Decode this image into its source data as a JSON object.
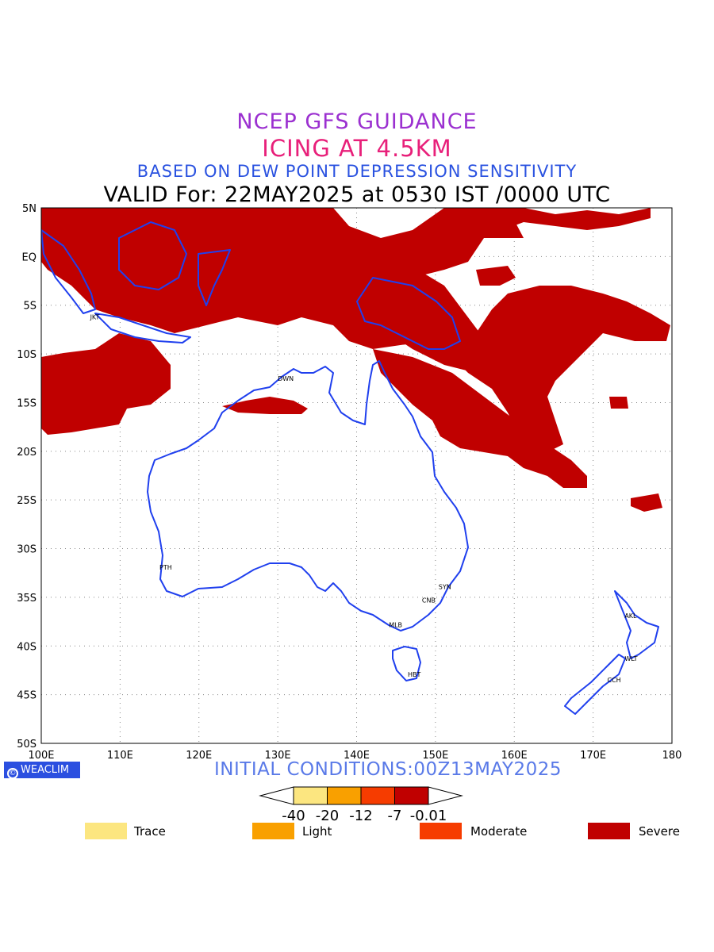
{
  "titles": {
    "line1": "NCEP GFS GUIDANCE",
    "line2": "ICING AT 4.5KM",
    "line3": "BASED ON DEW POINT DEPRESSION SENSITIVITY",
    "line4": "VALID For: 22MAY2025 at 0530 IST /0000 UTC"
  },
  "axes": {
    "lon_labels": [
      "100E",
      "110E",
      "120E",
      "130E",
      "140E",
      "150E",
      "160E",
      "170E",
      "180"
    ],
    "lat_labels": [
      "5N",
      "EQ",
      "5S",
      "10S",
      "15S",
      "20S",
      "25S",
      "30S",
      "35S",
      "40S",
      "45S",
      "50S"
    ],
    "lon_range": [
      100,
      180
    ],
    "lat_range": [
      5,
      -50
    ],
    "grid": "dotted"
  },
  "cities": [
    {
      "code": "JKT",
      "lon": 107.0,
      "lat": -6.2
    },
    {
      "code": "DWN",
      "lon": 130.8,
      "lat": -12.5
    },
    {
      "code": "PTH",
      "lon": 115.8,
      "lat": -31.9
    },
    {
      "code": "SYN",
      "lon": 151.2,
      "lat": -33.9
    },
    {
      "code": "CNB",
      "lon": 149.1,
      "lat": -35.3
    },
    {
      "code": "MLB",
      "lon": 144.9,
      "lat": -37.8
    },
    {
      "code": "HBT",
      "lon": 147.3,
      "lat": -42.9
    },
    {
      "code": "AKL",
      "lon": 174.8,
      "lat": -36.9
    },
    {
      "code": "WLT",
      "lon": 174.8,
      "lat": -41.3
    },
    {
      "code": "CCH",
      "lon": 172.6,
      "lat": -43.5
    }
  ],
  "logo_text": "WEACLIM",
  "initial_conditions": "INITIAL CONDITIONS:00Z13MAY2025",
  "colorbar": {
    "labels": [
      "-40",
      "-20",
      "-12",
      "-7",
      "-0.01"
    ],
    "colors": [
      "#fce680",
      "#f9a000",
      "#f63c00",
      "#c00000"
    ]
  },
  "legend": [
    {
      "label": "Trace",
      "color": "#fce680"
    },
    {
      "label": "Light",
      "color": "#f9a000"
    },
    {
      "label": "Moderate",
      "color": "#f63c00"
    },
    {
      "label": "Severe",
      "color": "#c00000"
    }
  ],
  "colors": {
    "severe_icing": "#c00000",
    "coastline": "#2040ee"
  }
}
